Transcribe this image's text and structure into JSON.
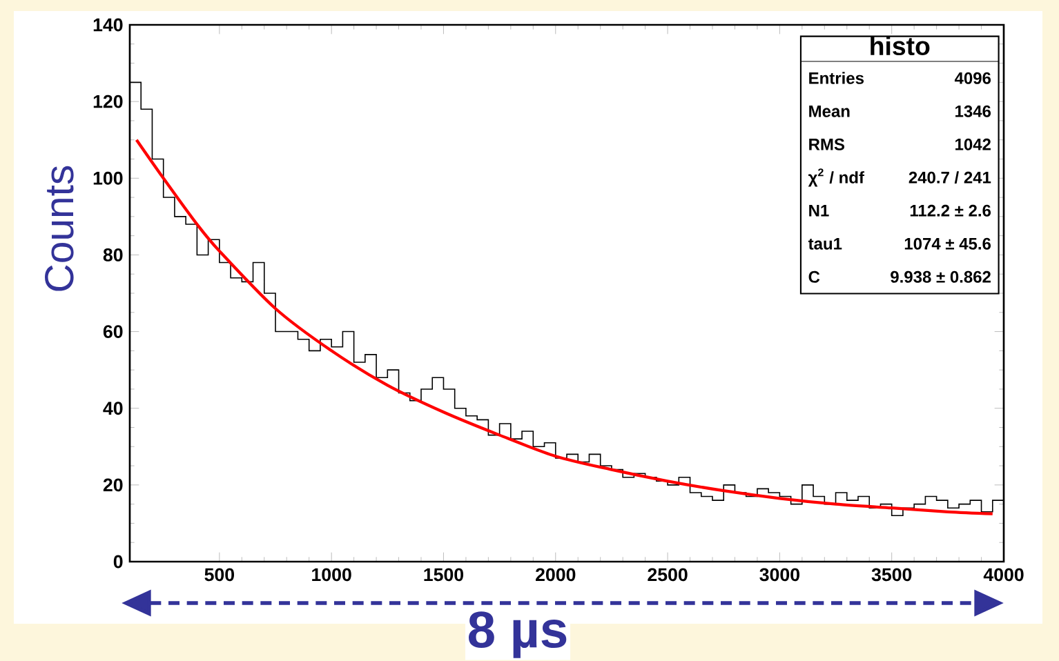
{
  "chart_data": {
    "type": "histogram",
    "xlabel": "8 µs",
    "ylabel": "Counts",
    "xlim": [
      100,
      4000
    ],
    "ylim": [
      0,
      140
    ],
    "xticks": [
      500,
      1000,
      1500,
      2000,
      2500,
      3000,
      3500,
      4000
    ],
    "yticks": [
      0,
      20,
      40,
      60,
      80,
      100,
      120,
      140
    ],
    "series": [
      {
        "type": "histogram",
        "color": "#000000",
        "bins": [
          100,
          150,
          200,
          250,
          300,
          350,
          400,
          450,
          500,
          550,
          600,
          650,
          700,
          750,
          800,
          850,
          900,
          950,
          1000,
          1050,
          1100,
          1150,
          1200,
          1250,
          1300,
          1350,
          1400,
          1450,
          1500,
          1550,
          1600,
          1650,
          1700,
          1750,
          1800,
          1850,
          1900,
          1950,
          2000,
          2050,
          2100,
          2150,
          2200,
          2250,
          2300,
          2350,
          2400,
          2450,
          2500,
          2550,
          2600,
          2650,
          2700,
          2750,
          2800,
          2850,
          2900,
          2950,
          3000,
          3050,
          3100,
          3150,
          3200,
          3250,
          3300,
          3350,
          3400,
          3450,
          3500,
          3550,
          3600,
          3650,
          3700,
          3750,
          3800,
          3850,
          3900,
          3950,
          4000
        ],
        "values": [
          125,
          118,
          105,
          95,
          90,
          88,
          80,
          84,
          78,
          74,
          73,
          78,
          70,
          60,
          60,
          58,
          55,
          58,
          56,
          60,
          52,
          54,
          48,
          50,
          44,
          42,
          45,
          48,
          45,
          40,
          38,
          37,
          33,
          36,
          32,
          34,
          30,
          31,
          27,
          28,
          26,
          28,
          25,
          24,
          22,
          23,
          22,
          21,
          20,
          22,
          18,
          17,
          16,
          20,
          18,
          17,
          19,
          18,
          17,
          15,
          20,
          17,
          15,
          18,
          16,
          17,
          14,
          15,
          12,
          14,
          15,
          17,
          16,
          14,
          15,
          16,
          13,
          16
        ]
      },
      {
        "type": "line",
        "color": "#ff0000",
        "x": [
          130,
          250,
          400,
          500,
          750,
          1000,
          1250,
          1500,
          1750,
          2000,
          2250,
          2500,
          2750,
          3000,
          3250,
          3500,
          3750,
          3950
        ],
        "values": [
          110,
          100,
          88,
          81,
          66,
          55,
          46,
          39,
          33,
          27.5,
          24,
          21,
          18.5,
          16.5,
          15,
          14,
          13,
          12.5
        ]
      }
    ],
    "annotations": [
      "histo",
      "Entries",
      "4096",
      "Mean",
      "1346",
      "RMS",
      "1042",
      "χ$^{2}$ / ndf",
      "240.7 / 241",
      "N1",
      "112.2 ± 2.6",
      "tau1",
      "1074 ± 45.6",
      "C",
      "9.938 ± 0.862"
    ]
  }
}
